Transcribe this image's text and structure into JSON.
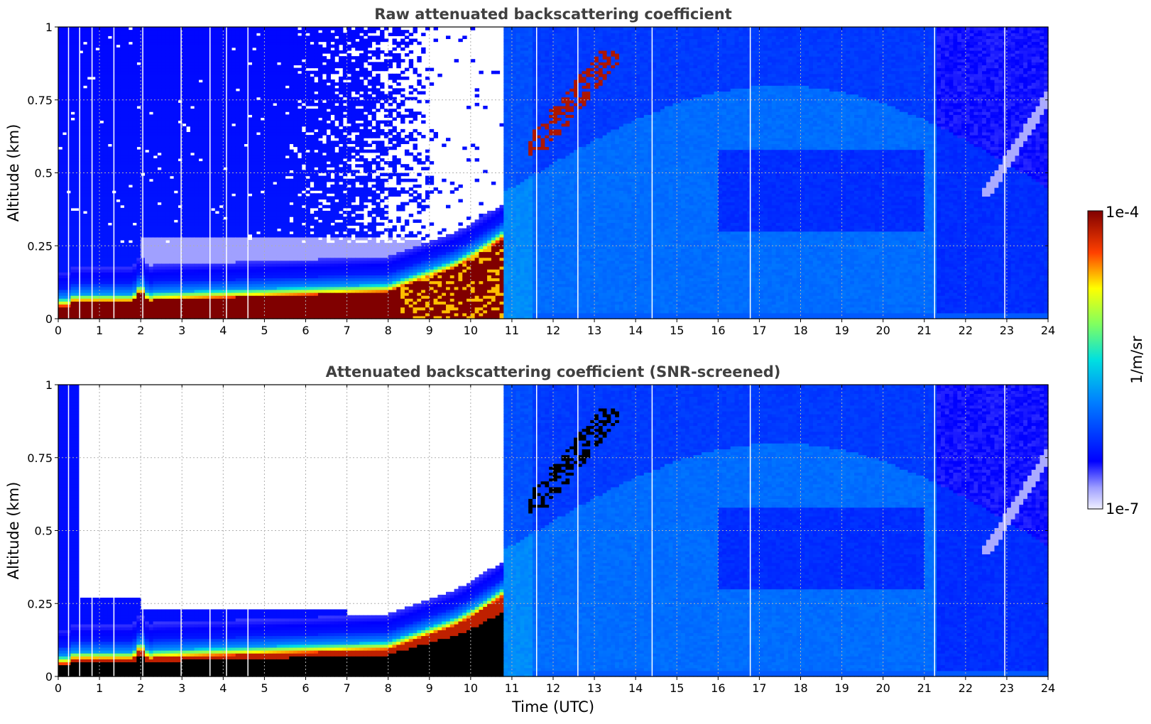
{
  "chart_data": [
    {
      "type": "heatmap",
      "title": "Raw attenuated backscattering coefficient",
      "xlabel": "",
      "ylabel": "Altitude (km)",
      "xlim": [
        0,
        24
      ],
      "ylim": [
        0,
        1
      ],
      "xticks": [
        "0",
        "1",
        "2",
        "3",
        "4",
        "5",
        "6",
        "7",
        "8",
        "9",
        "10",
        "11",
        "12",
        "13",
        "14",
        "15",
        "16",
        "17",
        "18",
        "19",
        "20",
        "21",
        "22",
        "23",
        "24"
      ],
      "yticks": [
        "0",
        "0.25",
        "0.5",
        "0.75",
        "1"
      ],
      "grid": true,
      "screened": false,
      "data_gap_times": [
        0.25,
        0.52,
        0.82,
        1.35,
        2.05,
        2.98,
        3.68,
        4.08,
        4.6,
        11.6,
        12.6,
        14.4,
        16.78,
        21.25,
        22.95
      ]
    },
    {
      "type": "heatmap",
      "title": "Attenuated backscattering coefficient (SNR-screened)",
      "xlabel": "Time (UTC)",
      "ylabel": "Altitude (km)",
      "xlim": [
        0,
        24
      ],
      "ylim": [
        0,
        1
      ],
      "xticks": [
        "0",
        "1",
        "2",
        "3",
        "4",
        "5",
        "6",
        "7",
        "8",
        "9",
        "10",
        "11",
        "12",
        "13",
        "14",
        "15",
        "16",
        "17",
        "18",
        "19",
        "20",
        "21",
        "22",
        "23",
        "24"
      ],
      "yticks": [
        "0",
        "0.25",
        "0.5",
        "0.75",
        "1"
      ],
      "grid": true,
      "screened": true,
      "data_gap_times": [
        0.25,
        0.52,
        0.82,
        1.35,
        2.05,
        2.98,
        3.68,
        4.08,
        4.6,
        11.6,
        12.6,
        14.4,
        16.78,
        21.25,
        22.95
      ]
    }
  ],
  "colorbar": {
    "label": "1/m/sr",
    "max_label": "1e-4",
    "min_label": "1e-7",
    "scale": "log",
    "colormap": "jet",
    "colors": [
      "#e8e8f8",
      "#0000ff",
      "#00a0ff",
      "#00ffd0",
      "#ffff00",
      "#ff5000",
      "#800000"
    ]
  }
}
